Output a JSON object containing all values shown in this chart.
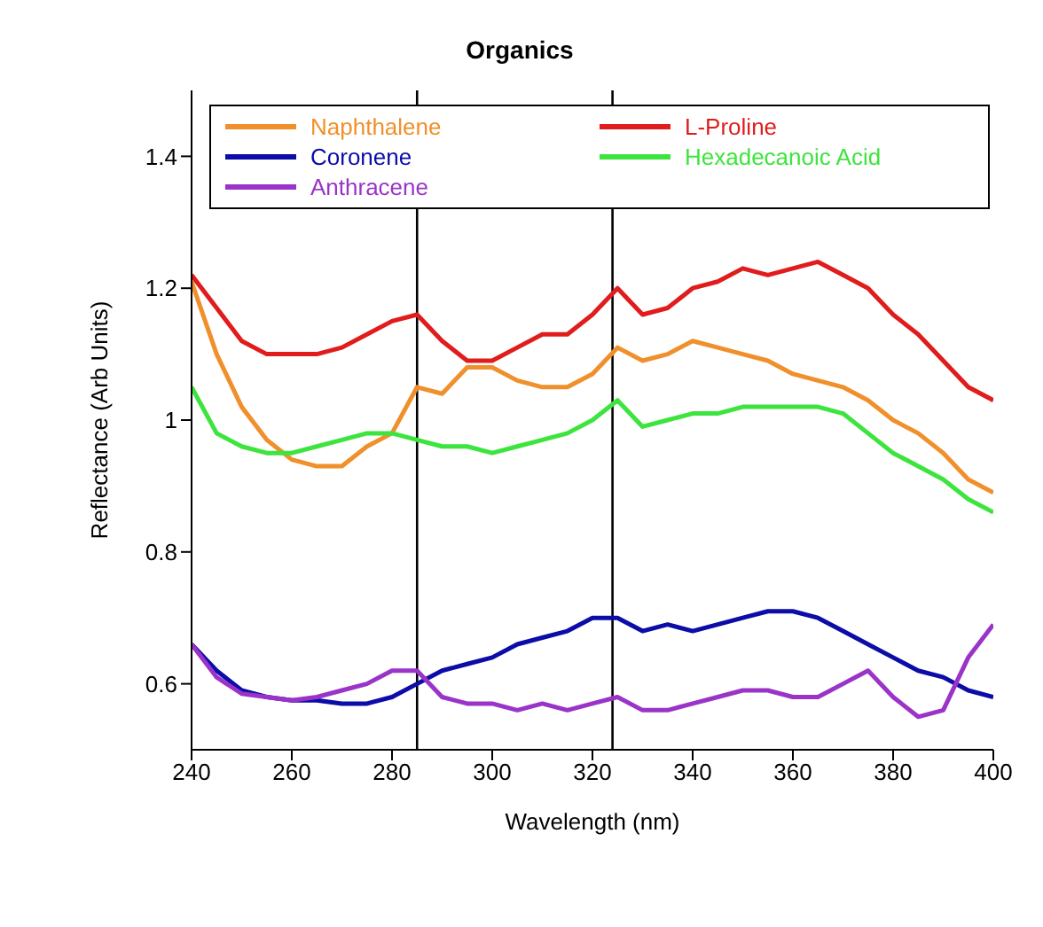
{
  "chart_data": {
    "type": "line",
    "title": "Organics",
    "xlabel": "Wavelength (nm)",
    "ylabel": "Reflectance (Arb Units)",
    "x": [
      240,
      245,
      250,
      255,
      260,
      265,
      270,
      275,
      280,
      285,
      290,
      295,
      300,
      305,
      310,
      315,
      320,
      325,
      330,
      335,
      340,
      345,
      350,
      355,
      360,
      365,
      370,
      375,
      380,
      385,
      390,
      395,
      400
    ],
    "series": [
      {
        "name": "Naphthalene",
        "color": "#f0902c",
        "values": [
          1.21,
          1.1,
          1.02,
          0.97,
          0.94,
          0.93,
          0.93,
          0.96,
          0.98,
          1.05,
          1.04,
          1.08,
          1.08,
          1.06,
          1.05,
          1.05,
          1.07,
          1.11,
          1.09,
          1.1,
          1.12,
          1.11,
          1.1,
          1.09,
          1.07,
          1.06,
          1.05,
          1.03,
          1.0,
          0.98,
          0.95,
          0.91,
          0.89
        ]
      },
      {
        "name": "L-Proline",
        "color": "#e01c1c",
        "values": [
          1.22,
          1.17,
          1.12,
          1.1,
          1.1,
          1.1,
          1.11,
          1.13,
          1.15,
          1.16,
          1.12,
          1.09,
          1.09,
          1.11,
          1.13,
          1.13,
          1.16,
          1.2,
          1.16,
          1.17,
          1.2,
          1.21,
          1.23,
          1.22,
          1.23,
          1.24,
          1.22,
          1.2,
          1.16,
          1.13,
          1.09,
          1.05,
          1.03
        ]
      },
      {
        "name": "Coronene",
        "color": "#0c0ca8",
        "values": [
          0.66,
          0.62,
          0.59,
          0.58,
          0.575,
          0.575,
          0.57,
          0.57,
          0.58,
          0.6,
          0.62,
          0.63,
          0.64,
          0.66,
          0.67,
          0.68,
          0.7,
          0.7,
          0.68,
          0.69,
          0.68,
          0.69,
          0.7,
          0.71,
          0.71,
          0.7,
          0.68,
          0.66,
          0.64,
          0.62,
          0.61,
          0.59,
          0.58
        ]
      },
      {
        "name": "Hexadecanoic Acid",
        "color": "#3ee43e",
        "values": [
          1.05,
          0.98,
          0.96,
          0.95,
          0.95,
          0.96,
          0.97,
          0.98,
          0.98,
          0.97,
          0.96,
          0.96,
          0.95,
          0.96,
          0.97,
          0.98,
          1.0,
          1.03,
          0.99,
          1.0,
          1.01,
          1.01,
          1.02,
          1.02,
          1.02,
          1.02,
          1.01,
          0.98,
          0.95,
          0.93,
          0.91,
          0.88,
          0.86
        ]
      },
      {
        "name": "Anthracene",
        "color": "#9a34c8",
        "values": [
          0.66,
          0.61,
          0.585,
          0.58,
          0.575,
          0.58,
          0.59,
          0.6,
          0.62,
          0.62,
          0.58,
          0.57,
          0.57,
          0.56,
          0.57,
          0.56,
          0.57,
          0.58,
          0.56,
          0.56,
          0.57,
          0.58,
          0.59,
          0.59,
          0.58,
          0.58,
          0.6,
          0.62,
          0.58,
          0.55,
          0.56,
          0.64,
          0.69
        ]
      }
    ],
    "xlim": [
      240,
      400
    ],
    "xticks": [
      240,
      260,
      280,
      300,
      320,
      340,
      360,
      380,
      400
    ],
    "ylim": [
      0.5,
      1.5
    ],
    "yticks": [
      0.6,
      0.8,
      1,
      1.2,
      1.4
    ],
    "ref_lines": [
      {
        "axis": "x",
        "value": 285,
        "color": "#000000"
      },
      {
        "axis": "x",
        "value": 324,
        "color": "#000000"
      }
    ],
    "grid": false,
    "legend": "top",
    "marker": "none",
    "line_style": "solid"
  }
}
